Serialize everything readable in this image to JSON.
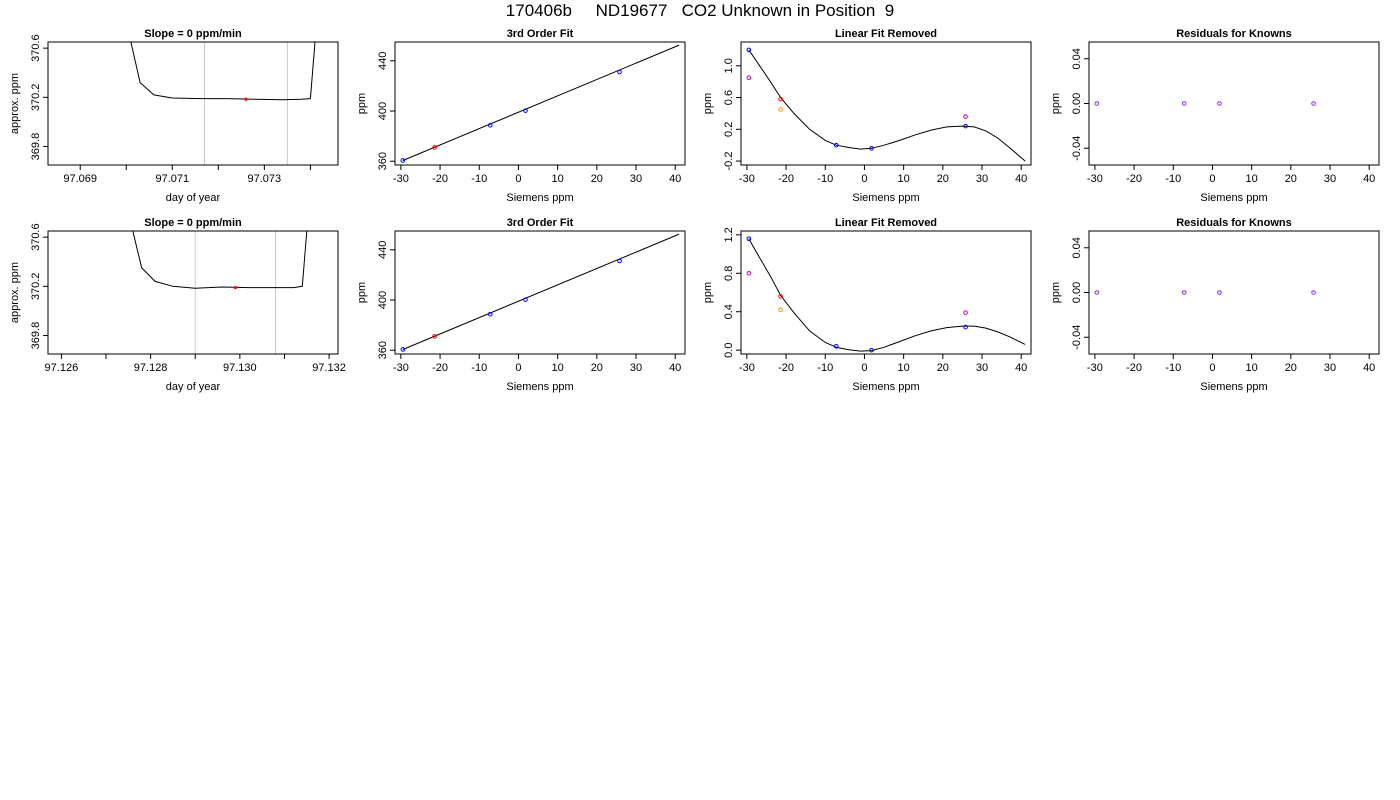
{
  "page": {
    "title": "170406b     ND19677   CO2 Unknown in Position  9"
  },
  "colors": {
    "axis": "#000000",
    "window_lines": "#c8c8c8",
    "trace": "#000000",
    "known": "#0000ff",
    "unknown": "#ff0000",
    "magenta": "#cc00cc",
    "orange": "#ff9900",
    "purple": "#8a2be2"
  },
  "chart_data": [
    {
      "type": "line",
      "row": 0,
      "col": 0,
      "title": "Slope =  0  ppm/min",
      "xlabel": "day of year",
      "ylabel": "approx. ppm",
      "xlim": [
        97.0683,
        97.0746
      ],
      "ylim": [
        369.65,
        370.65
      ],
      "xticks": [
        97.069,
        97.07,
        97.071,
        97.072,
        97.073,
        97.074
      ],
      "xtick_labels": [
        "97.069",
        "",
        "97.071",
        "",
        "97.073",
        ""
      ],
      "yticks": [
        369.8,
        370.2,
        370.6
      ],
      "ytick_labels": [
        "369.8",
        "370.2",
        "370.6"
      ],
      "vlines": [
        97.0717,
        97.0735
      ],
      "trace": {
        "x": [
          97.0701,
          97.0703,
          97.0706,
          97.071,
          97.0716,
          97.0722,
          97.0728,
          97.0734,
          97.0738,
          97.074,
          97.0741
        ],
        "y": [
          370.65,
          370.32,
          370.22,
          370.195,
          370.19,
          370.19,
          370.185,
          370.18,
          370.185,
          370.19,
          370.65
        ]
      },
      "marker": {
        "x": 97.0726,
        "y": 370.185
      }
    },
    {
      "type": "scatter",
      "row": 0,
      "col": 1,
      "title": "3rd Order Fit",
      "xlabel": "Siemens ppm",
      "ylabel": "ppm",
      "xlim": [
        -31.5,
        42.5
      ],
      "ylim": [
        357,
        455
      ],
      "xticks": [
        -30,
        -20,
        -10,
        0,
        10,
        20,
        30,
        40
      ],
      "xtick_labels": [
        "-30",
        "-20",
        "-10",
        "0",
        "10",
        "20",
        "30",
        "40"
      ],
      "yticks": [
        360,
        400,
        440
      ],
      "ytick_labels": [
        "360",
        "400",
        "440"
      ],
      "fit_line": {
        "x": [
          -29.5,
          41
        ],
        "y": [
          360.6,
          452.5
        ]
      },
      "known": {
        "x": [
          -29.5,
          -7.2,
          1.8,
          25.8
        ],
        "y": [
          360.6,
          388.7,
          400.3,
          431.1
        ]
      },
      "unknown": {
        "x": [
          -21.4
        ],
        "y": [
          371.0
        ]
      }
    },
    {
      "type": "scatter",
      "row": 0,
      "col": 2,
      "title": "Linear Fit Removed",
      "xlabel": "Siemens ppm",
      "ylabel": "ppm",
      "xlim": [
        -31.5,
        42.5
      ],
      "ylim": [
        -0.25,
        1.3
      ],
      "xticks": [
        -30,
        -20,
        -10,
        0,
        10,
        20,
        30,
        40
      ],
      "xtick_labels": [
        "-30",
        "-20",
        "-10",
        "0",
        "10",
        "20",
        "30",
        "40"
      ],
      "yticks": [
        -0.2,
        0.2,
        0.6,
        1.0
      ],
      "ytick_labels": [
        "-0.2",
        "0.2",
        "0.6",
        "1.0"
      ],
      "curve": {
        "x": [
          -29.5,
          -27,
          -24,
          -21.4,
          -18,
          -14,
          -10,
          -7.2,
          -4,
          -1,
          1.8,
          5,
          9,
          13,
          17,
          21,
          25,
          28,
          31,
          34,
          37,
          41
        ],
        "y": [
          1.2,
          1.02,
          0.8,
          0.6,
          0.4,
          0.2,
          0.06,
          0.0,
          -0.03,
          -0.05,
          -0.04,
          0.0,
          0.06,
          0.13,
          0.19,
          0.23,
          0.24,
          0.23,
          0.18,
          0.09,
          -0.03,
          -0.2
        ]
      },
      "known": {
        "x": [
          -29.5,
          -7.2,
          1.8,
          25.8
        ],
        "y": [
          1.2,
          0.0,
          -0.04,
          0.24
        ]
      },
      "unknown": {
        "x": [
          -21.4
        ],
        "y": [
          0.58
        ]
      },
      "magenta": {
        "x": [
          -29.5,
          25.8
        ],
        "y": [
          0.85,
          0.36
        ]
      },
      "orange": {
        "x": [
          -21.4
        ],
        "y": [
          0.45
        ]
      }
    },
    {
      "type": "scatter",
      "row": 0,
      "col": 3,
      "title": "Residuals for Knowns",
      "xlabel": "Siemens ppm",
      "ylabel": "ppm",
      "xlim": [
        -31.5,
        42.5
      ],
      "ylim": [
        -0.055,
        0.055
      ],
      "xticks": [
        -30,
        -20,
        -10,
        0,
        10,
        20,
        30,
        40
      ],
      "xtick_labels": [
        "-30",
        "-20",
        "-10",
        "0",
        "10",
        "20",
        "30",
        "40"
      ],
      "yticks": [
        -0.04,
        0.0,
        0.04
      ],
      "ytick_labels": [
        "-0.04",
        "0.00",
        "0.04"
      ],
      "points": {
        "x": [
          -29.5,
          -7.2,
          1.8,
          25.8
        ],
        "y": [
          0,
          0,
          0,
          0
        ]
      }
    },
    {
      "type": "line",
      "row": 1,
      "col": 0,
      "title": "Slope =  0  ppm/min",
      "xlabel": "day of year",
      "ylabel": "approx. ppm",
      "xlim": [
        97.1257,
        97.1322
      ],
      "ylim": [
        369.65,
        370.65
      ],
      "xticks": [
        97.126,
        97.127,
        97.128,
        97.129,
        97.13,
        97.131,
        97.132
      ],
      "xtick_labels": [
        "97.126",
        "",
        "97.128",
        "",
        "97.130",
        "",
        "97.132"
      ],
      "yticks": [
        369.8,
        370.2,
        370.6
      ],
      "ytick_labels": [
        "369.8",
        "370.2",
        "370.6"
      ],
      "vlines": [
        97.129,
        97.1308
      ],
      "trace": {
        "x": [
          97.1276,
          97.1278,
          97.1281,
          97.1285,
          97.129,
          97.1296,
          97.1302,
          97.1308,
          97.1312,
          97.1314,
          97.1315
        ],
        "y": [
          370.65,
          370.35,
          370.24,
          370.2,
          370.185,
          370.195,
          370.19,
          370.19,
          370.19,
          370.2,
          370.65
        ]
      },
      "marker": {
        "x": 97.1299,
        "y": 370.19
      }
    },
    {
      "type": "scatter",
      "row": 1,
      "col": 1,
      "title": "3rd Order Fit",
      "xlabel": "Siemens ppm",
      "ylabel": "ppm",
      "xlim": [
        -31.5,
        42.5
      ],
      "ylim": [
        357,
        455
      ],
      "xticks": [
        -30,
        -20,
        -10,
        0,
        10,
        20,
        30,
        40
      ],
      "xtick_labels": [
        "-30",
        "-20",
        "-10",
        "0",
        "10",
        "20",
        "30",
        "40"
      ],
      "yticks": [
        360,
        400,
        440
      ],
      "ytick_labels": [
        "360",
        "400",
        "440"
      ],
      "fit_line": {
        "x": [
          -29.5,
          41
        ],
        "y": [
          360.6,
          452.5
        ]
      },
      "known": {
        "x": [
          -29.5,
          -7.2,
          1.8,
          25.8
        ],
        "y": [
          360.6,
          388.7,
          400.3,
          431.1
        ]
      },
      "unknown": {
        "x": [
          -21.4
        ],
        "y": [
          371.0
        ]
      }
    },
    {
      "type": "scatter",
      "row": 1,
      "col": 2,
      "title": "Linear Fit Removed",
      "xlabel": "Siemens ppm",
      "ylabel": "ppm",
      "xlim": [
        -31.5,
        42.5
      ],
      "ylim": [
        -0.04,
        1.24
      ],
      "xticks": [
        -30,
        -20,
        -10,
        0,
        10,
        20,
        30,
        40
      ],
      "xtick_labels": [
        "-30",
        "-20",
        "-10",
        "0",
        "10",
        "20",
        "30",
        "40"
      ],
      "yticks": [
        0.0,
        0.4,
        0.8,
        1.2
      ],
      "ytick_labels": [
        "0.0",
        "0.4",
        "0.8",
        "1.2"
      ],
      "curve": {
        "x": [
          -29.5,
          -27,
          -24,
          -21.4,
          -18,
          -14,
          -10,
          -7.2,
          -4,
          -1,
          1.8,
          5,
          9,
          13,
          17,
          21,
          25,
          28,
          31,
          34,
          37,
          41
        ],
        "y": [
          1.16,
          0.98,
          0.77,
          0.57,
          0.39,
          0.2,
          0.08,
          0.03,
          0.005,
          -0.01,
          -0.005,
          0.03,
          0.09,
          0.15,
          0.2,
          0.235,
          0.25,
          0.25,
          0.23,
          0.19,
          0.14,
          0.06
        ]
      },
      "known": {
        "x": [
          -29.5,
          -7.2,
          1.8,
          25.8
        ],
        "y": [
          1.16,
          0.04,
          0.0,
          0.24
        ]
      },
      "unknown": {
        "x": [
          -21.4
        ],
        "y": [
          0.56
        ]
      },
      "magenta": {
        "x": [
          -29.5,
          25.8
        ],
        "y": [
          0.8,
          0.39
        ]
      },
      "orange": {
        "x": [
          -21.4
        ],
        "y": [
          0.42
        ]
      }
    },
    {
      "type": "scatter",
      "row": 1,
      "col": 3,
      "title": "Residuals for Knowns",
      "xlabel": "Siemens ppm",
      "ylabel": "ppm",
      "xlim": [
        -31.5,
        42.5
      ],
      "ylim": [
        -0.055,
        0.055
      ],
      "xticks": [
        -30,
        -20,
        -10,
        0,
        10,
        20,
        30,
        40
      ],
      "xtick_labels": [
        "-30",
        "-20",
        "-10",
        "0",
        "10",
        "20",
        "30",
        "40"
      ],
      "yticks": [
        -0.04,
        0.0,
        0.04
      ],
      "ytick_labels": [
        "-0.04",
        "0.00",
        "0.04"
      ],
      "points": {
        "x": [
          -29.5,
          -7.2,
          1.8,
          25.8
        ],
        "y": [
          0,
          0,
          0,
          0
        ]
      }
    }
  ]
}
